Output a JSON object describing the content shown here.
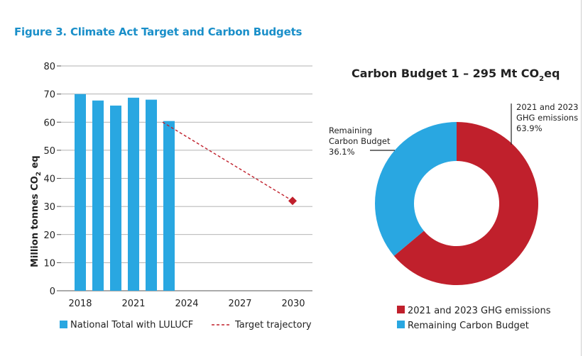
{
  "figure_title": "Figure 3. Climate Act Target and Carbon Budgets",
  "colors": {
    "bar": "#29a7e1",
    "target": "#c0202c",
    "ghg": "#c0202c",
    "remaining": "#29a7e1",
    "title_blue": "#1a8fc9"
  },
  "chart_data": [
    {
      "type": "bar",
      "ylabel_parts": [
        "Million tonnes  CO",
        "2",
        " eq"
      ],
      "ylim": [
        0,
        80
      ],
      "yticks": [
        0,
        10,
        20,
        30,
        40,
        50,
        60,
        70,
        80
      ],
      "xlim": [
        2017.7,
        2031
      ],
      "xticks": [
        2018,
        2021,
        2024,
        2027,
        2030
      ],
      "grid": true,
      "series": [
        {
          "name": "National Total with LULUCF",
          "kind": "bar",
          "x": [
            2018,
            2019,
            2020,
            2021,
            2022,
            2023
          ],
          "values": [
            70,
            67.7,
            65.9,
            68.7,
            68.0,
            60.4
          ]
        },
        {
          "name": "Target trajectory",
          "kind": "dashed-line",
          "x": [
            2023,
            2030
          ],
          "values": [
            60,
            32
          ]
        }
      ],
      "legend_position": "bottom"
    },
    {
      "type": "pie",
      "subtype": "donut",
      "title_parts": [
        "Carbon Budget 1 – 295 Mt CO",
        "2",
        "eq"
      ],
      "slices": [
        {
          "name": "2021 and 2023 GHG emissions",
          "value": 63.9,
          "label_lines": [
            "2021 and 2023",
            "GHG emissions",
            "63.9%"
          ]
        },
        {
          "name": "Remaining Carbon Budget",
          "value": 36.1,
          "label_lines": [
            "Remaining",
            "Carbon Budget",
            "36.1%"
          ]
        }
      ],
      "legend_position": "bottom"
    }
  ]
}
